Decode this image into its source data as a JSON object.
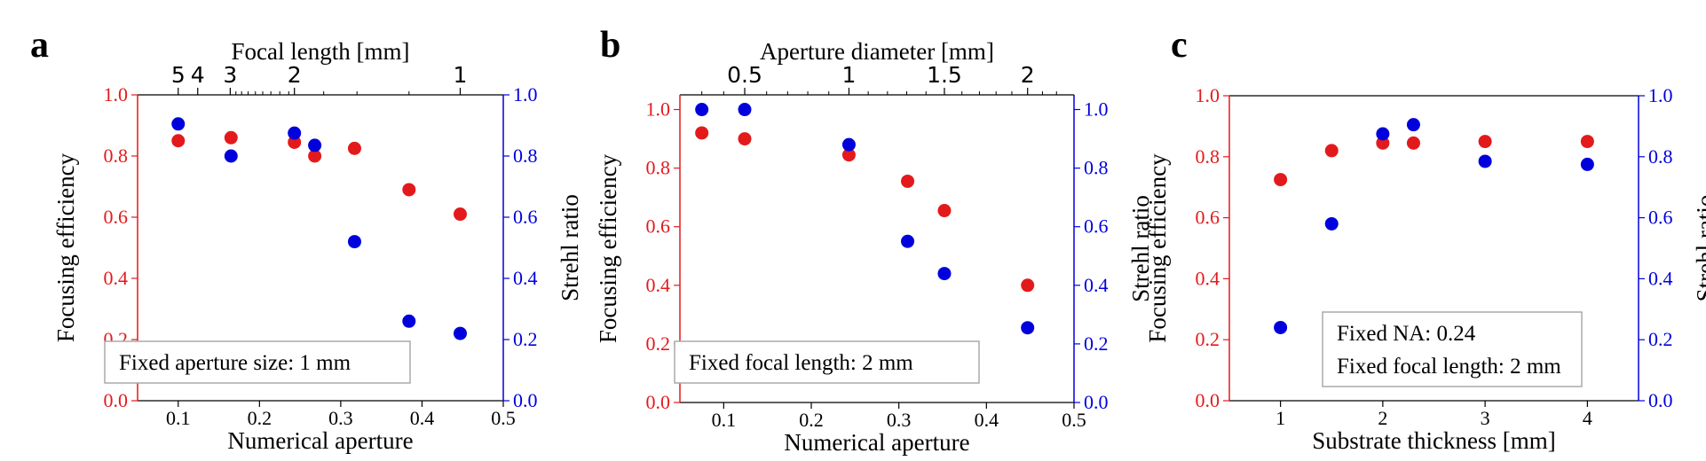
{
  "colors": {
    "efficiency": "#e31a1c",
    "strehl": "#0000dd",
    "axis": "#000000"
  },
  "chart_data": [
    {
      "id": "a",
      "panel_label": "a",
      "type": "scatter",
      "xlabel": "Numerical aperture",
      "ylabel_left": "Focusing efficiency",
      "ylabel_right": "Strehl ratio",
      "xlim": [
        0.05,
        0.5
      ],
      "ylim": [
        0,
        1.0
      ],
      "x_ticks": [
        0.1,
        0.2,
        0.3,
        0.4,
        0.5
      ],
      "x_tick_labels": [
        "0.1",
        "0.2",
        "0.3",
        "0.4",
        "0.5"
      ],
      "y_ticks": [
        0,
        0.2,
        0.4,
        0.6,
        0.8,
        1.0
      ],
      "y_tick_labels": [
        "0.0",
        "0.2",
        "0.4",
        "0.6",
        "0.8",
        "1.0"
      ],
      "top_axis": {
        "label": "Focal length [mm]",
        "major_labels": [
          "5",
          "4",
          "3",
          "2",
          "1"
        ],
        "major_positions": [
          0.1,
          0.124,
          0.164,
          0.243,
          0.447
        ],
        "minor_positions": [
          0.171,
          0.178,
          0.186,
          0.195,
          0.204,
          0.214,
          0.225,
          0.236,
          0.384,
          0.32,
          0.279
        ]
      },
      "series": [
        {
          "name": "Focusing efficiency",
          "axis": "left",
          "x": [
            0.1,
            0.165,
            0.243,
            0.268,
            0.317,
            0.384,
            0.447
          ],
          "y": [
            0.85,
            0.86,
            0.845,
            0.8,
            0.825,
            0.69,
            0.61
          ]
        },
        {
          "name": "Strehl ratio",
          "axis": "right",
          "x": [
            0.1,
            0.165,
            0.243,
            0.268,
            0.317,
            0.384,
            0.447
          ],
          "y": [
            0.905,
            0.8,
            0.875,
            0.835,
            0.52,
            0.26,
            0.22
          ]
        }
      ],
      "annotation": [
        "Fixed aperture size: 1 mm"
      ]
    },
    {
      "id": "b",
      "panel_label": "b",
      "type": "scatter",
      "xlabel": "Numerical aperture",
      "ylabel_left": "Focusing efficiency",
      "ylabel_right": "Strehl ratio",
      "xlim": [
        0.05,
        0.5
      ],
      "ylim": [
        0,
        1.05
      ],
      "x_ticks": [
        0.1,
        0.2,
        0.3,
        0.4,
        0.5
      ],
      "x_tick_labels": [
        "0.1",
        "0.2",
        "0.3",
        "0.4",
        "0.5"
      ],
      "y_ticks": [
        0,
        0.2,
        0.4,
        0.6,
        0.8,
        1.0
      ],
      "y_tick_labels": [
        "0.0",
        "0.2",
        "0.4",
        "0.6",
        "0.8",
        "1.0"
      ],
      "top_axis": {
        "label": "Aperture diameter [mm]",
        "major_labels": [
          "0.5",
          "1",
          "1.5",
          "2"
        ],
        "major_positions": [
          0.124,
          0.243,
          0.352,
          0.447
        ],
        "minor_positions": [
          0.075,
          0.1,
          0.149,
          0.173,
          0.196,
          0.22,
          0.265,
          0.287,
          0.309,
          0.331,
          0.372,
          0.392,
          0.411,
          0.429,
          0.464,
          0.48
        ]
      },
      "series": [
        {
          "name": "Focusing efficiency",
          "axis": "left",
          "x": [
            0.075,
            0.124,
            0.243,
            0.31,
            0.352,
            0.447
          ],
          "y": [
            0.92,
            0.9,
            0.845,
            0.755,
            0.655,
            0.4
          ]
        },
        {
          "name": "Strehl ratio",
          "axis": "right",
          "x": [
            0.075,
            0.124,
            0.243,
            0.31,
            0.352,
            0.447
          ],
          "y": [
            1.0,
            1.0,
            0.88,
            0.55,
            0.44,
            0.255
          ]
        }
      ],
      "annotation": [
        "Fixed focal length: 2 mm"
      ]
    },
    {
      "id": "c",
      "panel_label": "c",
      "type": "scatter",
      "xlabel": "Substrate thickness [mm]",
      "ylabel_left": "Focusing efficiency",
      "ylabel_right": "Strehl ratio",
      "xlim": [
        0.5,
        4.5
      ],
      "ylim": [
        0,
        1.0
      ],
      "x_ticks": [
        1,
        2,
        3,
        4
      ],
      "x_tick_labels": [
        "1",
        "2",
        "3",
        "4"
      ],
      "y_ticks": [
        0,
        0.2,
        0.4,
        0.6,
        0.8,
        1.0
      ],
      "y_tick_labels": [
        "0.0",
        "0.2",
        "0.4",
        "0.6",
        "0.8",
        "1.0"
      ],
      "series": [
        {
          "name": "Focusing efficiency",
          "axis": "left",
          "x": [
            1,
            1.5,
            2,
            2.3,
            3,
            4
          ],
          "y": [
            0.725,
            0.82,
            0.845,
            0.845,
            0.85,
            0.85
          ]
        },
        {
          "name": "Strehl ratio",
          "axis": "right",
          "x": [
            1,
            1.5,
            2,
            2.3,
            3,
            4
          ],
          "y": [
            0.24,
            0.58,
            0.875,
            0.905,
            0.785,
            0.775
          ]
        }
      ],
      "annotation": [
        "Fixed NA: 0.24",
        "Fixed focal length: 2 mm"
      ]
    }
  ]
}
